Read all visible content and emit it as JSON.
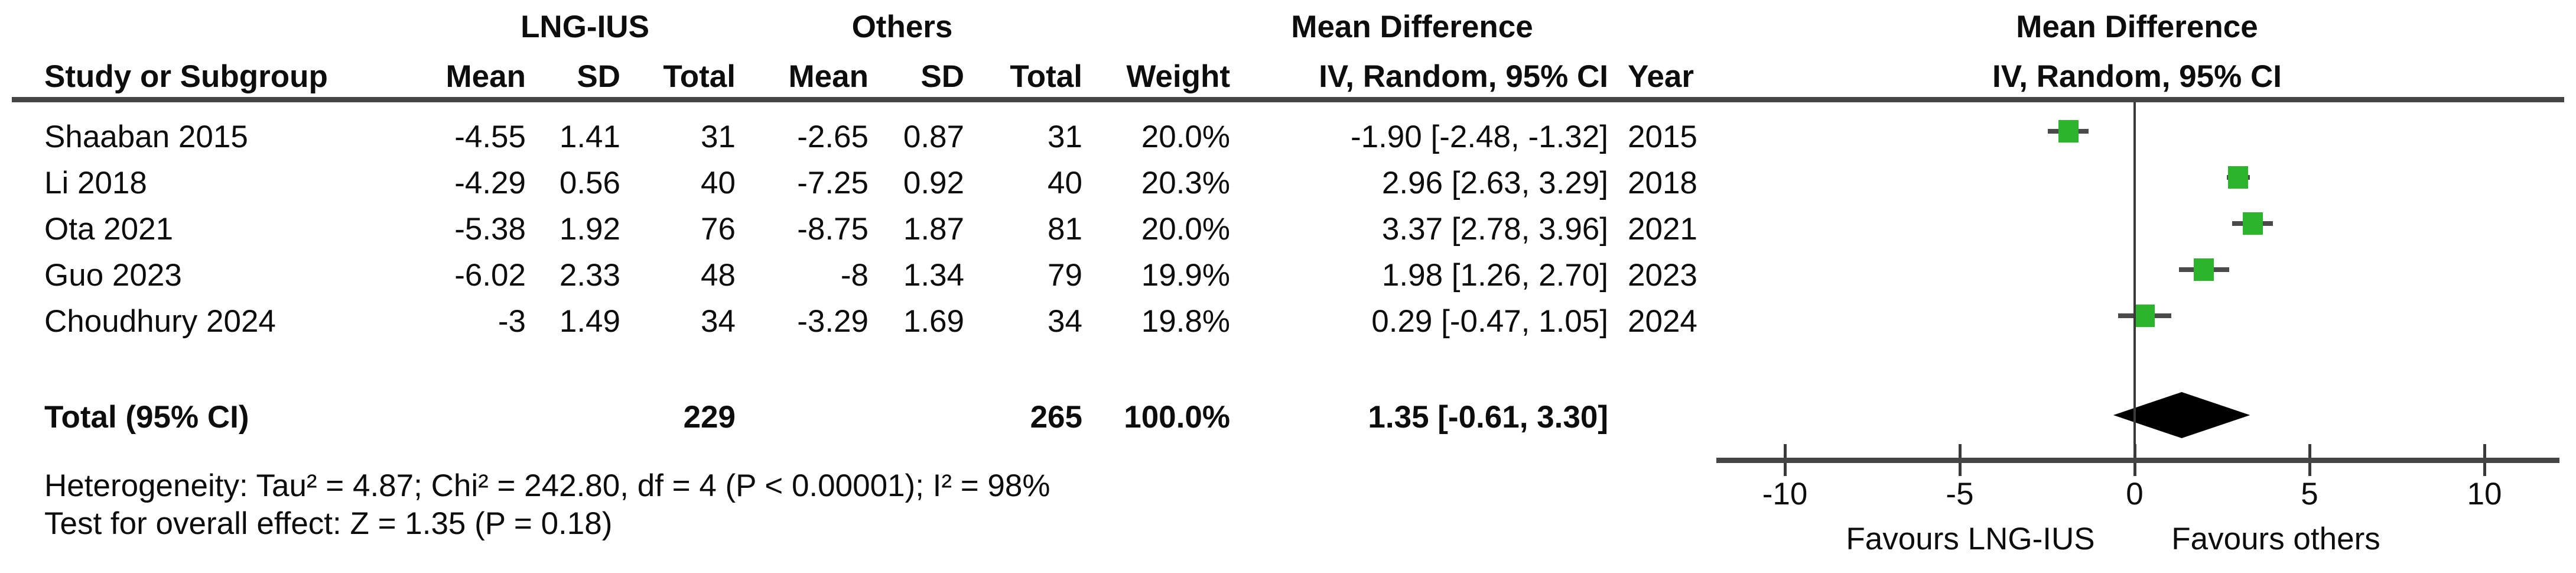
{
  "header": {
    "study_col": "Study or Subgroup",
    "group1": "LNG-IUS",
    "group2": "Others",
    "mean": "Mean",
    "sd": "SD",
    "total": "Total",
    "weight": "Weight",
    "effect_label": "Mean Difference",
    "method_label": "IV, Random, 95% CI",
    "year": "Year",
    "plot_effect_label": "Mean Difference",
    "plot_method_label": "IV, Random, 95% CI"
  },
  "chart_data": {
    "type": "forest",
    "effect_measure": "Mean Difference",
    "model": "IV, Random, 95% CI",
    "groups": [
      "LNG-IUS",
      "Others"
    ],
    "studies": [
      {
        "name": "Shaaban 2015",
        "g1_mean": "-4.55",
        "g1_sd": "1.41",
        "g1_total": "31",
        "g2_mean": "-2.65",
        "g2_sd": "0.87",
        "g2_total": "31",
        "weight": "20.0%",
        "ci_text": "-1.90 [-2.48, -1.32]",
        "year": "2015",
        "md": -1.9,
        "ci_low": -2.48,
        "ci_high": -1.32
      },
      {
        "name": "Li 2018",
        "g1_mean": "-4.29",
        "g1_sd": "0.56",
        "g1_total": "40",
        "g2_mean": "-7.25",
        "g2_sd": "0.92",
        "g2_total": "40",
        "weight": "20.3%",
        "ci_text": "2.96 [2.63, 3.29]",
        "year": "2018",
        "md": 2.96,
        "ci_low": 2.63,
        "ci_high": 3.29
      },
      {
        "name": "Ota 2021",
        "g1_mean": "-5.38",
        "g1_sd": "1.92",
        "g1_total": "76",
        "g2_mean": "-8.75",
        "g2_sd": "1.87",
        "g2_total": "81",
        "weight": "20.0%",
        "ci_text": "3.37 [2.78, 3.96]",
        "year": "2021",
        "md": 3.37,
        "ci_low": 2.78,
        "ci_high": 3.96
      },
      {
        "name": "Guo 2023",
        "g1_mean": "-6.02",
        "g1_sd": "2.33",
        "g1_total": "48",
        "g2_mean": "-8",
        "g2_sd": "1.34",
        "g2_total": "79",
        "weight": "19.9%",
        "ci_text": "1.98 [1.26, 2.70]",
        "year": "2023",
        "md": 1.98,
        "ci_low": 1.26,
        "ci_high": 2.7
      },
      {
        "name": "Choudhury 2024",
        "g1_mean": "-3",
        "g1_sd": "1.49",
        "g1_total": "34",
        "g2_mean": "-3.29",
        "g2_sd": "1.69",
        "g2_total": "34",
        "weight": "19.8%",
        "ci_text": "0.29 [-0.47, 1.05]",
        "year": "2024",
        "md": 0.29,
        "ci_low": -0.47,
        "ci_high": 1.05
      }
    ],
    "total": {
      "label": "Total (95% CI)",
      "g1_total": "229",
      "g2_total": "265",
      "weight": "100.0%",
      "ci_text": "1.35 [-0.61, 3.30]",
      "md": 1.35,
      "ci_low": -0.61,
      "ci_high": 3.3
    },
    "heterogeneity": "Heterogeneity: Tau² = 4.87; Chi² = 242.80, df = 4 (P < 0.00001); I² = 98%",
    "overall_effect": "Test for overall effect: Z = 1.35 (P = 0.18)",
    "axis": {
      "ticks": [
        -10,
        -5,
        0,
        5,
        10
      ],
      "tick_labels": [
        "-10",
        "-5",
        "0",
        "5",
        "10"
      ],
      "min": -12,
      "max": 12.2
    },
    "favours_left": "Favours LNG-IUS",
    "favours_right": "Favours others",
    "colors": {
      "marker": "#2db42d",
      "diamond": "#000000",
      "line": "#454545"
    }
  }
}
